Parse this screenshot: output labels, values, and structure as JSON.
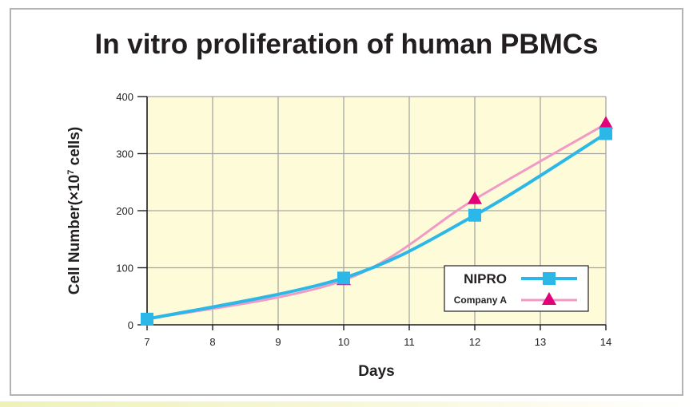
{
  "title": "In vitro proliferation of human PBMCs",
  "colors": {
    "plot_background": "#fdfbd8",
    "grid": "#a6a6a6",
    "nipro": "#2bb7e8",
    "company_a_line": "#f09ac5",
    "company_a_marker": "#e2007a"
  },
  "chart_data": {
    "type": "line",
    "title": "In vitro proliferation of human PBMCs",
    "xlabel": "Days",
    "ylabel_main": "Cell Number(×10",
    "ylabel_exp": "7",
    "ylabel_unit": " cells)",
    "xlim": [
      7,
      14
    ],
    "ylim": [
      0,
      400
    ],
    "x_ticks": [
      "7",
      "8",
      "9",
      "10",
      "11",
      "12",
      "13",
      "14"
    ],
    "y_ticks": [
      "0",
      "100",
      "200",
      "300",
      "400"
    ],
    "grid": true,
    "legend_position": "bottom-right",
    "series": [
      {
        "name": "NIPRO",
        "marker": "square",
        "x": [
          7,
          10,
          12,
          14
        ],
        "y": [
          10,
          82,
          192,
          335
        ]
      },
      {
        "name": "Company A",
        "marker": "triangle",
        "x": [
          10,
          12,
          14
        ],
        "y": [
          78,
          220,
          352
        ]
      }
    ]
  }
}
